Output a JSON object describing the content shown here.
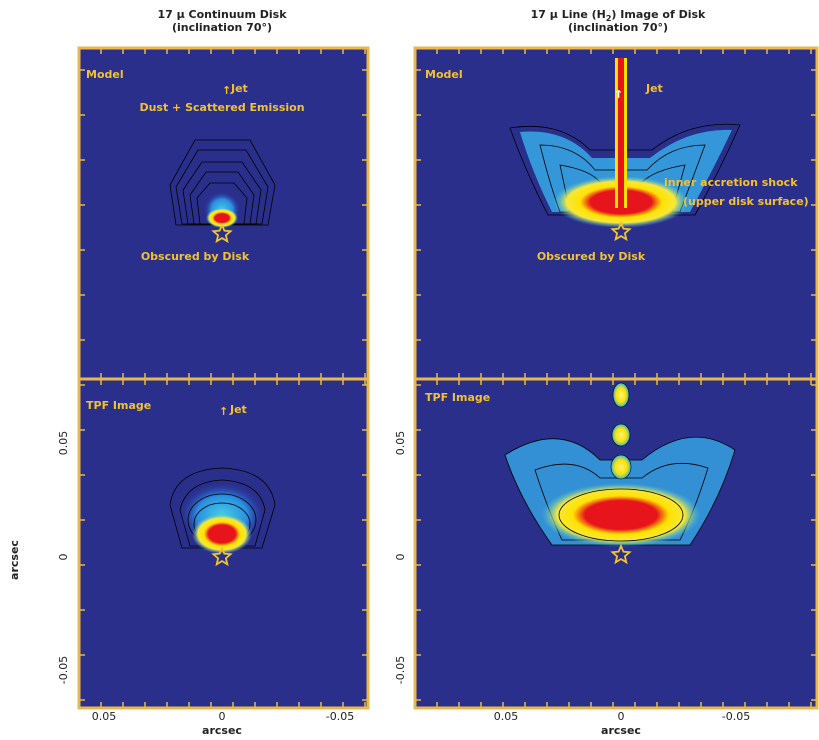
{
  "left": {
    "title": "17 μ Continuum Disk",
    "subtitle": "(inclination 70°)",
    "model": {
      "label": "Model",
      "jet": "Jet",
      "emission": "Dust + Scattered Emission",
      "obscured": "Obscured by Disk"
    },
    "tpf": {
      "label": "TPF Image",
      "jet": "Jet"
    },
    "y_ticks": [
      "0.05",
      "0",
      "-0.05"
    ],
    "x_ticks": [
      "0.05",
      "0",
      "-0.05"
    ],
    "x_label": "arcsec"
  },
  "right": {
    "title_start": "17 μ Line (H",
    "title_sub": "2",
    "title_end": ") Image of Disk",
    "subtitle": "(inclination 70°)",
    "model": {
      "label": "Model",
      "jet": "Jet",
      "shock": "inner accretion shock",
      "shock_note": "(upper disk surface)",
      "obscured": "Obscured by Disk"
    },
    "tpf": {
      "label": "TPF Image"
    },
    "y_ticks": [
      "0.05",
      "0",
      "-0.05"
    ],
    "x_ticks": [
      "0.05",
      "0",
      "-0.05"
    ],
    "x_label": "arcsec"
  },
  "y_label": "arcsec"
}
